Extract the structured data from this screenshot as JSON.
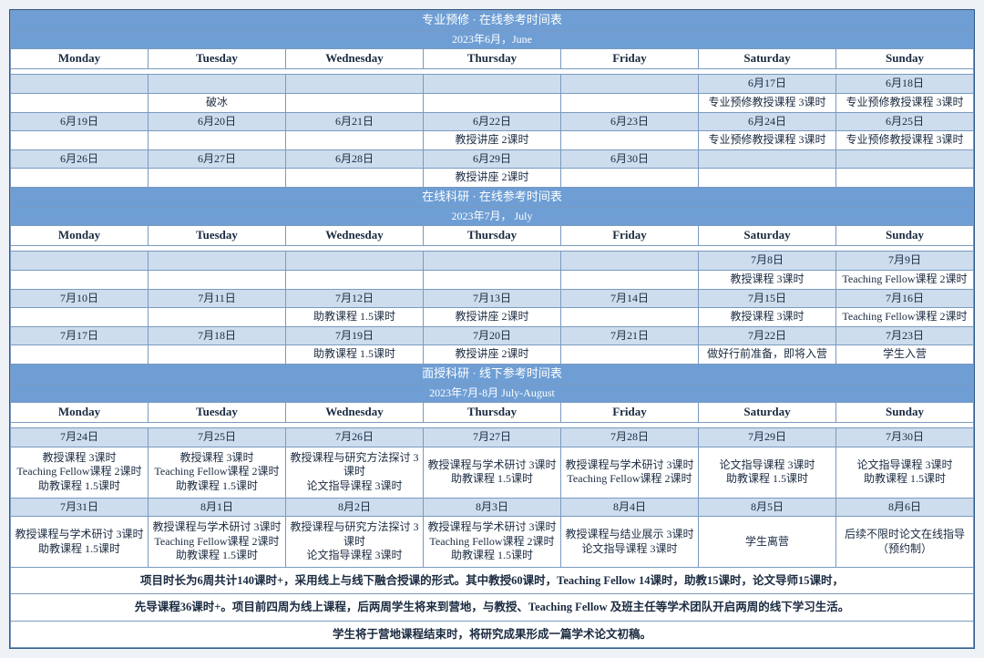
{
  "colors": {
    "header_bg": "#6e9ed4",
    "date_bg": "#cdddee",
    "border": "#7a9ac0"
  },
  "days": {
    "mon": "Monday",
    "tue": "Tuesday",
    "wed": "Wednesday",
    "thu": "Thursday",
    "fri": "Friday",
    "sat": "Saturday",
    "sun": "Sunday"
  },
  "sec1": {
    "title": "专业预修 · 在线参考时间表",
    "sub": "2023年6月，June",
    "r0": {
      "sat": "6月17日",
      "sun": "6月18日"
    },
    "r1": {
      "tue": "破冰",
      "sat": "专业预修教授课程 3课时",
      "sun": "专业预修教授课程 3课时"
    },
    "r2": {
      "mon": "6月19日",
      "tue": "6月20日",
      "wed": "6月21日",
      "thu": "6月22日",
      "fri": "6月23日",
      "sat": "6月24日",
      "sun": "6月25日"
    },
    "r3": {
      "thu": "教授讲座 2课时",
      "sat": "专业预修教授课程 3课时",
      "sun": "专业预修教授课程 3课时"
    },
    "r4": {
      "mon": "6月26日",
      "tue": "6月27日",
      "wed": "6月28日",
      "thu": "6月29日",
      "fri": "6月30日"
    },
    "r5": {
      "thu": "教授讲座 2课时"
    }
  },
  "sec2": {
    "title": "在线科研 · 在线参考时间表",
    "sub": "2023年7月， July",
    "r0": {
      "sat": "7月8日",
      "sun": "7月9日"
    },
    "r1": {
      "sat": "教授课程 3课时",
      "sun": "Teaching Fellow课程 2课时"
    },
    "r2": {
      "mon": "7月10日",
      "tue": "7月11日",
      "wed": "7月12日",
      "thu": "7月13日",
      "fri": "7月14日",
      "sat": "7月15日",
      "sun": "7月16日"
    },
    "r3": {
      "wed": "助教课程 1.5课时",
      "thu": "教授讲座 2课时",
      "sat": "教授课程 3课时",
      "sun": "Teaching Fellow课程 2课时"
    },
    "r4": {
      "mon": "7月17日",
      "tue": "7月18日",
      "wed": "7月19日",
      "thu": "7月20日",
      "fri": "7月21日",
      "sat": "7月22日",
      "sun": "7月23日"
    },
    "r5": {
      "wed": "助教课程 1.5课时",
      "thu": "教授讲座 2课时",
      "sat": "做好行前准备，即将入营",
      "sun": "学生入营"
    }
  },
  "sec3": {
    "title": "面授科研 · 线下参考时间表",
    "sub": "2023年7月-8月 July-August",
    "r0": {
      "mon": "7月24日",
      "tue": "7月25日",
      "wed": "7月26日",
      "thu": "7月27日",
      "fri": "7月28日",
      "sat": "7月29日",
      "sun": "7月30日"
    },
    "r1": {
      "mon": "教授课程 3课时\nTeaching Fellow课程 2课时\n助教课程 1.5课时",
      "tue": "教授课程 3课时\nTeaching Fellow课程 2课时\n助教课程 1.5课时",
      "wed": "教授课程与研究方法探讨 3课时\n论文指导课程 3课时",
      "thu": "教授课程与学术研讨 3课时\n助教课程 1.5课时",
      "fri": "教授课程与学术研讨 3课时\nTeaching Fellow课程 2课时",
      "sat": "论文指导课程 3课时\n助教课程 1.5课时",
      "sun": "论文指导课程 3课时\n助教课程 1.5课时"
    },
    "r2": {
      "mon": "7月31日",
      "tue": "8月1日",
      "wed": "8月2日",
      "thu": "8月3日",
      "fri": "8月4日",
      "sat": "8月5日",
      "sun": "8月6日"
    },
    "r3": {
      "mon": "教授课程与学术研讨 3课时\n助教课程 1.5课时",
      "tue": "教授课程与学术研讨 3课时\nTeaching Fellow课程 2课时\n助教课程 1.5课时",
      "wed": "教授课程与研究方法探讨 3课时\n论文指导课程 3课时",
      "thu": "教授课程与学术研讨 3课时\nTeaching Fellow课程 2课时\n助教课程 1.5课时",
      "fri": "教授课程与结业展示 3课时\n论文指导课程 3课时",
      "sat": "学生离营",
      "sun": "后续不限时论文在线指导\n（预约制）"
    }
  },
  "footer": {
    "l1": "项目时长为6周共计140课时+，采用线上与线下融合授课的形式。其中教授60课时，Teaching Fellow 14课时，助教15课时，论文导师15课时，",
    "l2": "先导课程36课时+。项目前四周为线上课程，后两周学生将来到营地，与教授、Teaching Fellow 及班主任等学术团队开启两周的线下学习生活。",
    "l3": "学生将于营地课程结束时，将研究成果形成一篇学术论文初稿。"
  }
}
